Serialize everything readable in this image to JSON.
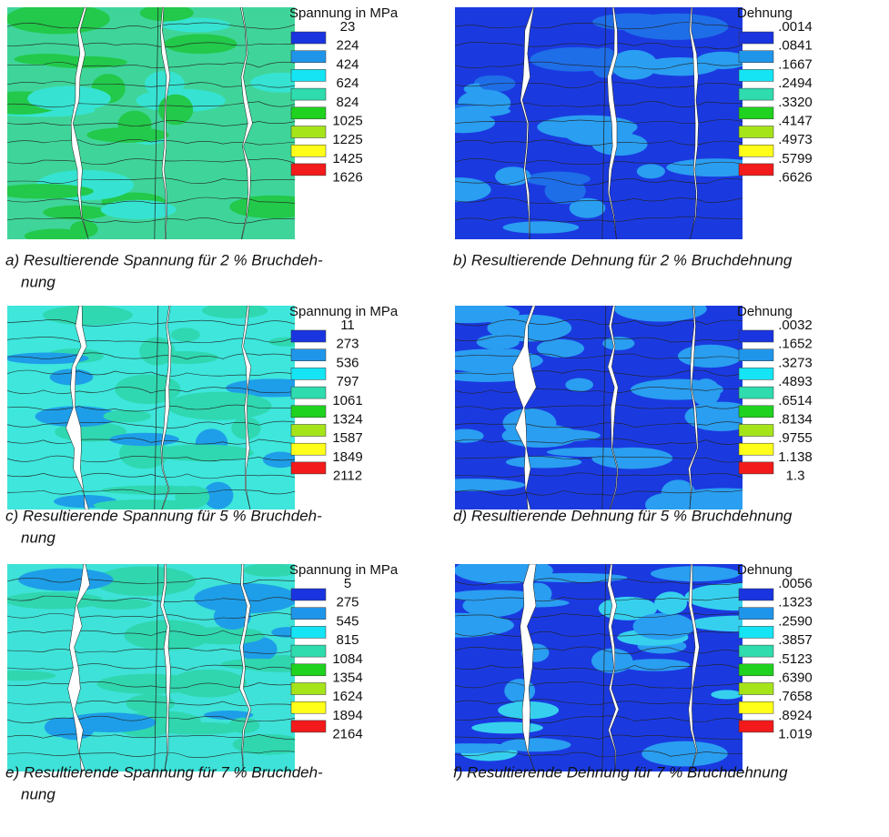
{
  "legend_colors": [
    "#1a34e0",
    "#1f95ea",
    "#14e4f4",
    "#2edcae",
    "#1fd21f",
    "#a6e41a",
    "#ffff1a",
    "#f21a1a"
  ],
  "panels": [
    {
      "legend_title": "Spannung in MPa",
      "legend_labels": [
        "23",
        "224",
        "424",
        "624",
        "824",
        "1025",
        "1225",
        "1425",
        "1626"
      ],
      "caption": [
        "a) Resultierende Spannung für 2 % Bruchdeh-",
        "nung"
      ]
    },
    {
      "legend_title": "Dehnung",
      "legend_labels": [
        ".0014",
        ".0841",
        ".1667",
        ".2494",
        ".3320",
        ".4147",
        ".4973",
        ".5799",
        ".6626"
      ],
      "caption": [
        "b) Resultierende Dehnung für 2 % Bruchdehnung"
      ]
    },
    {
      "legend_title": "Spannung in MPa",
      "legend_labels": [
        "11",
        "273",
        "536",
        "797",
        "1061",
        "1324",
        "1587",
        "1849",
        "2112"
      ],
      "caption": [
        "c) Resultierende Spannung für 5 % Bruchdeh-",
        "nung"
      ]
    },
    {
      "legend_title": "Dehnung",
      "legend_labels": [
        ".0032",
        ".1652",
        ".3273",
        ".4893",
        ".6514",
        ".8134",
        ".9755",
        "1.138",
        "1.3"
      ],
      "caption": [
        "d) Resultierende Dehnung für 5 % Bruchdehnung"
      ]
    },
    {
      "legend_title": "Spannung in MPa",
      "legend_labels": [
        "5",
        "275",
        "545",
        "815",
        "1084",
        "1354",
        "1624",
        "1894",
        "2164"
      ],
      "caption": [
        "e) Resultierende Spannung für 7 % Bruchdeh-",
        "nung"
      ]
    },
    {
      "legend_title": "Dehnung",
      "legend_labels": [
        ".0056",
        ".1323",
        ".2590",
        ".3857",
        ".5123",
        ".6390",
        ".7658",
        ".8924",
        "1.019"
      ],
      "caption": [
        "f)  Resultierende Dehnung für 7 % Bruchdehnung"
      ]
    }
  ]
}
